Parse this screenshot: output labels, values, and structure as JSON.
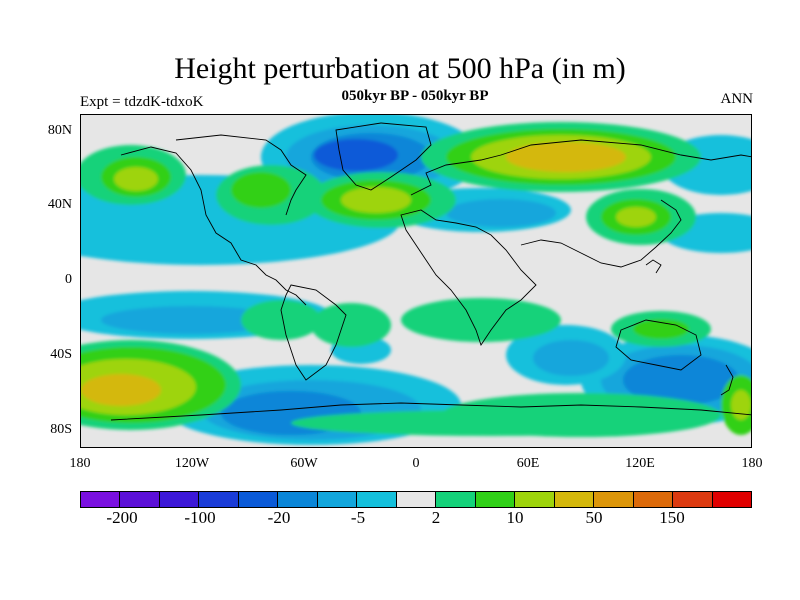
{
  "title": "Height perturbation at 500 hPa (in m)",
  "subtitle": "050kyr BP - 050kyr BP",
  "left_string": "Expt = tdzdK-tdxoK",
  "right_string": "ANN",
  "y_axis_labels": [
    "80N",
    "40N",
    "0",
    "40S",
    "80S"
  ],
  "x_axis_labels": [
    "180",
    "120W",
    "60W",
    "0",
    "60E",
    "120E",
    "180"
  ],
  "colorbar": {
    "colors": [
      "#7a10e0",
      "#5c10d8",
      "#3c18d8",
      "#1a3cd8",
      "#0a5ad8",
      "#0a86d8",
      "#12a6dc",
      "#14c0dc",
      "#e6e6e6",
      "#14d27a",
      "#30d018",
      "#9ed40c",
      "#d4b80c",
      "#dc960a",
      "#dc6a0a",
      "#dc3a10",
      "#e00000"
    ],
    "labels": [
      "-200",
      "-100",
      "-20",
      "-5",
      "2",
      "10",
      "50",
      "150"
    ]
  },
  "chart_data": {
    "type": "heatmap",
    "title": "Height perturbation at 500 hPa (in m)",
    "subtitle": "050kyr BP - 050kyr BP",
    "variable": "500 hPa height perturbation (m)",
    "x_range": [
      -180,
      180
    ],
    "y_range": [
      -90,
      90
    ],
    "contour_levels": [
      -200,
      -100,
      -20,
      -5,
      2,
      10,
      50,
      150
    ],
    "anomalies": [
      {
        "lon": -45,
        "lat": 70,
        "value": -100
      },
      {
        "lon": 60,
        "lat": 65,
        "value": 50
      },
      {
        "lon": -140,
        "lat": 55,
        "value": 20
      },
      {
        "lon": -20,
        "lat": 42,
        "value": 50
      },
      {
        "lon": -90,
        "lat": 52,
        "value": 10
      },
      {
        "lon": 130,
        "lat": 38,
        "value": 20
      },
      {
        "lon": -140,
        "lat": -55,
        "value": 50
      },
      {
        "lon": -90,
        "lat": -75,
        "value": -20
      },
      {
        "lon": 130,
        "lat": -50,
        "value": -20
      },
      {
        "lon": 150,
        "lat": -25,
        "value": 10
      },
      {
        "lon": 55,
        "lat": -40,
        "value": -10
      },
      {
        "lon": 60,
        "lat": -75,
        "value": 5
      },
      {
        "lon": -70,
        "lat": -25,
        "value": 5
      }
    ]
  }
}
